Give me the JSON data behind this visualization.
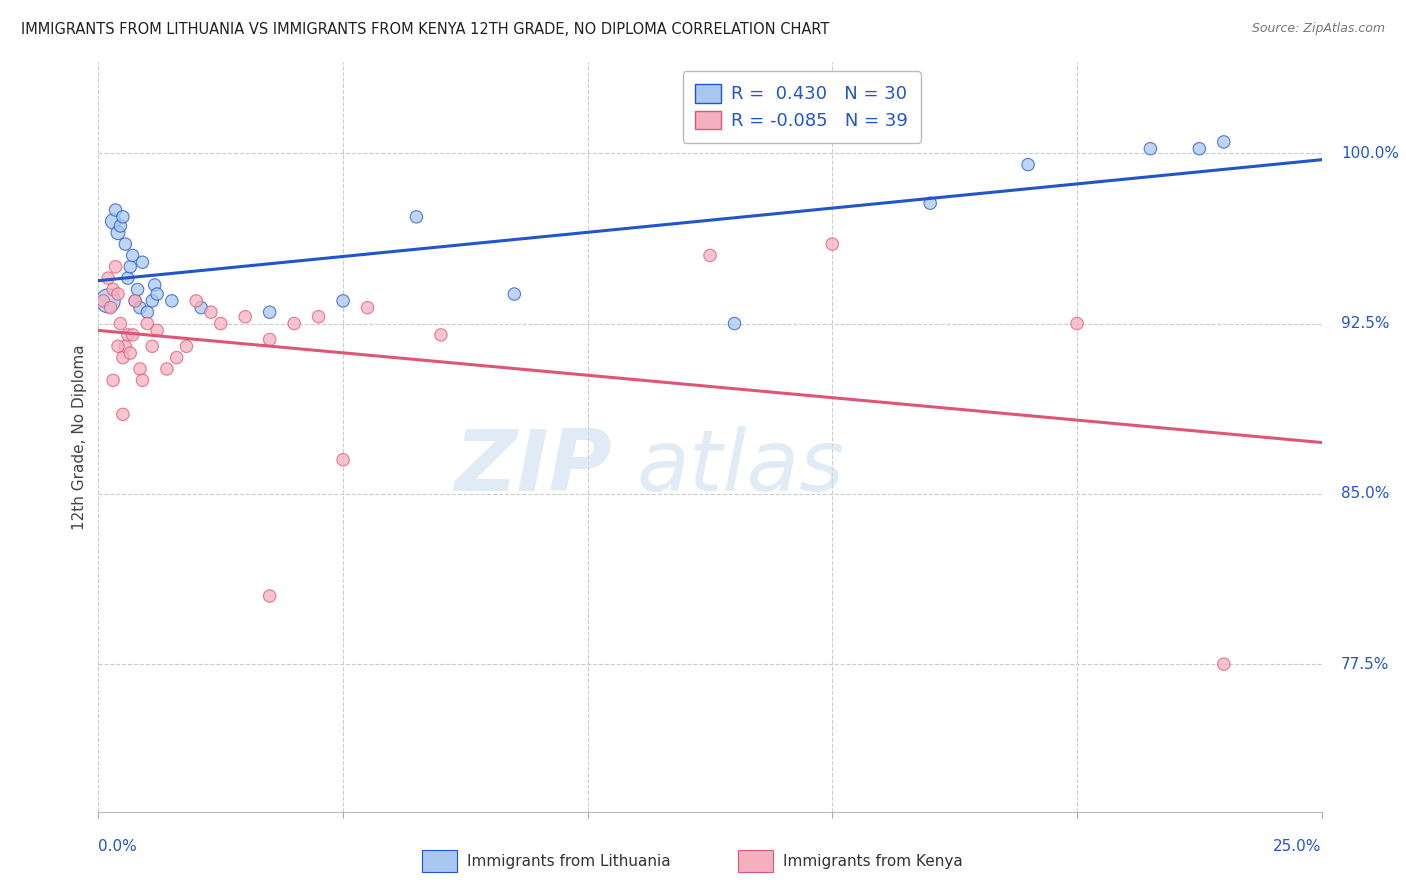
{
  "title": "IMMIGRANTS FROM LITHUANIA VS IMMIGRANTS FROM KENYA 12TH GRADE, NO DIPLOMA CORRELATION CHART",
  "source": "Source: ZipAtlas.com",
  "ylabel": "12th Grade, No Diploma",
  "yticks": [
    77.5,
    85.0,
    92.5,
    100.0
  ],
  "ytick_labels": [
    "77.5%",
    "85.0%",
    "92.5%",
    "100.0%"
  ],
  "xmin": 0.0,
  "xmax": 25.0,
  "ymin": 71.0,
  "ymax": 104.0,
  "legend1_label": "Immigrants from Lithuania",
  "legend2_label": "Immigrants from Kenya",
  "r_lithuania": 0.43,
  "n_lithuania": 30,
  "r_kenya": -0.085,
  "n_kenya": 39,
  "color_lithuania": "#A8C8F0",
  "color_kenya": "#F5B0C0",
  "trendline_lithuania": "#2255CC",
  "trendline_kenya": "#E05575",
  "watermark_zip": "ZIP",
  "watermark_atlas": "atlas",
  "lithuania_x": [
    0.2,
    0.3,
    0.35,
    0.4,
    0.45,
    0.5,
    0.55,
    0.6,
    0.65,
    0.7,
    0.75,
    0.8,
    0.85,
    0.9,
    1.0,
    1.1,
    1.15,
    1.2,
    1.5,
    2.1,
    3.5,
    5.0,
    6.5,
    8.5,
    13.0,
    17.0,
    19.0,
    21.5,
    22.5,
    23.0
  ],
  "lithuania_y": [
    93.5,
    97.0,
    97.5,
    96.5,
    96.8,
    97.2,
    96.0,
    94.5,
    95.0,
    95.5,
    93.5,
    94.0,
    93.2,
    95.2,
    93.0,
    93.5,
    94.2,
    93.8,
    93.5,
    93.2,
    93.0,
    93.5,
    97.2,
    93.8,
    92.5,
    97.8,
    99.5,
    100.2,
    100.2,
    100.5
  ],
  "lithuania_sizes": [
    300,
    120,
    80,
    100,
    80,
    80,
    80,
    80,
    80,
    80,
    80,
    80,
    80,
    80,
    80,
    80,
    80,
    80,
    80,
    80,
    80,
    80,
    80,
    80,
    80,
    80,
    80,
    80,
    80,
    80
  ],
  "kenya_x": [
    0.1,
    0.2,
    0.25,
    0.3,
    0.35,
    0.4,
    0.45,
    0.5,
    0.55,
    0.6,
    0.65,
    0.7,
    0.75,
    0.85,
    0.9,
    1.0,
    1.1,
    1.2,
    1.4,
    1.6,
    1.8,
    2.0,
    2.3,
    2.5,
    3.0,
    3.5,
    4.0,
    4.5,
    5.5,
    7.0,
    12.5,
    15.0,
    20.0,
    23.0,
    0.3,
    0.4,
    0.5,
    3.5,
    5.0
  ],
  "kenya_y": [
    93.5,
    94.5,
    93.2,
    94.0,
    95.0,
    93.8,
    92.5,
    91.0,
    91.5,
    92.0,
    91.2,
    92.0,
    93.5,
    90.5,
    90.0,
    92.5,
    91.5,
    92.2,
    90.5,
    91.0,
    91.5,
    93.5,
    93.0,
    92.5,
    92.8,
    91.8,
    92.5,
    92.8,
    93.2,
    92.0,
    95.5,
    96.0,
    92.5,
    77.5,
    90.0,
    91.5,
    88.5,
    80.5,
    86.5
  ],
  "kenya_sizes": [
    80,
    80,
    80,
    80,
    80,
    80,
    80,
    80,
    80,
    80,
    80,
    80,
    80,
    80,
    80,
    80,
    80,
    80,
    80,
    80,
    80,
    80,
    80,
    80,
    80,
    80,
    80,
    80,
    80,
    80,
    80,
    80,
    80,
    80,
    80,
    80,
    80,
    80,
    80
  ],
  "x_gridlines": [
    0,
    5,
    10,
    15,
    20,
    25
  ]
}
